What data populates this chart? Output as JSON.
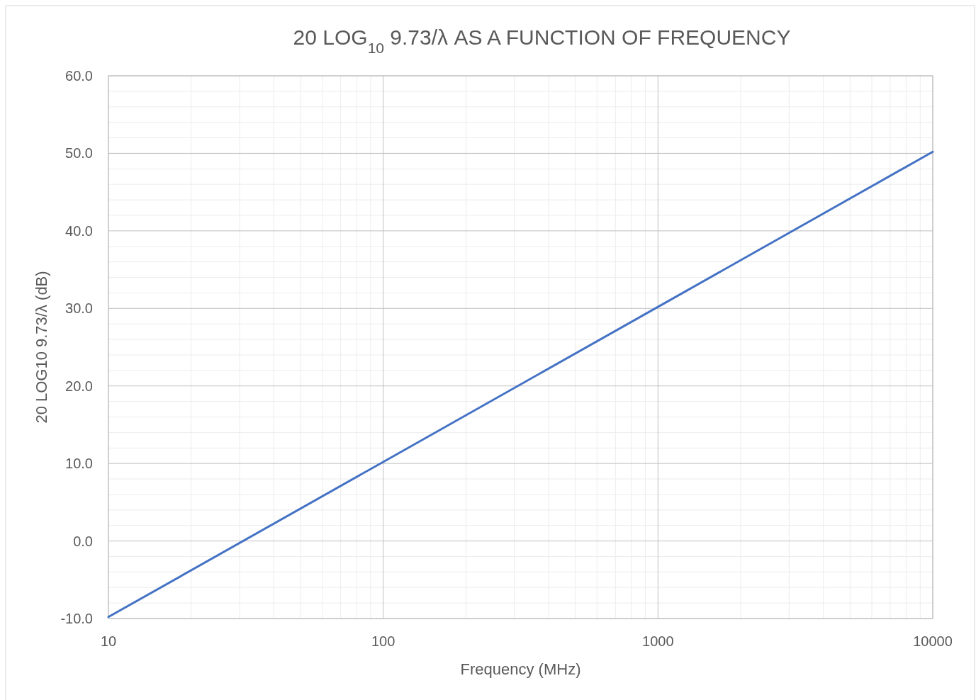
{
  "chart_data": {
    "type": "line",
    "title": "20 LOG$_{10}$ 9.73/λ AS A FUNCTION OF FREQUENCY",
    "xlabel": "Frequency (MHz)",
    "ylabel": "20 LOG10 9.73/λ (dB)",
    "log": "x",
    "grid": true,
    "marker": "none",
    "line_style": "solid",
    "xlim": [
      10,
      10000
    ],
    "xticks": [
      10,
      100,
      1000,
      10000
    ],
    "ylim": [
      -10,
      60
    ],
    "yticks": [
      {
        "value": -10,
        "label": "-10.0"
      },
      {
        "value": 0,
        "label": "0.0"
      },
      {
        "value": 10,
        "label": "10.0"
      },
      {
        "value": 20,
        "label": "20.0"
      },
      {
        "value": 30,
        "label": "30.0"
      },
      {
        "value": 40,
        "label": "40.0"
      },
      {
        "value": 50,
        "label": "50.0"
      },
      {
        "value": 60,
        "label": "60.0"
      }
    ],
    "series": [
      {
        "color": "#4472c4",
        "x": [
          10,
          100,
          1000,
          10000
        ],
        "values": [
          -9.8,
          10.2,
          30.2,
          50.2
        ]
      }
    ]
  }
}
